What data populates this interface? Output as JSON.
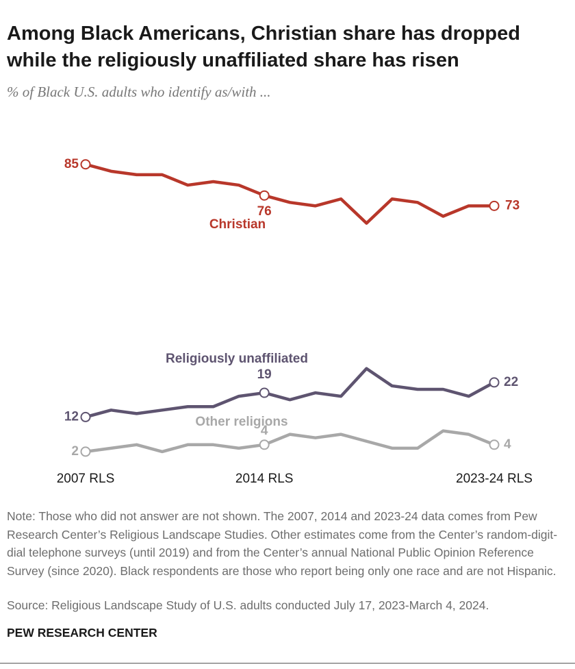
{
  "chart_data": {
    "type": "line",
    "title": "Among Black Americans, Christian share has dropped while the religiously unaffiliated share has risen",
    "subtitle": "% of Black U.S. adults who identify as/with ...",
    "categories": [
      "2007 RLS",
      null,
      null,
      null,
      null,
      null,
      null,
      "2014 RLS",
      null,
      null,
      null,
      null,
      null,
      null,
      null,
      null,
      "2023-24 RLS"
    ],
    "ylim": [
      0,
      90
    ],
    "series": [
      {
        "name": "Christian",
        "color": "#b8372a",
        "values": [
          85,
          83,
          82,
          82,
          79,
          80,
          79,
          76,
          74,
          73,
          75,
          68,
          75,
          74,
          70,
          73,
          73
        ]
      },
      {
        "name": "Religiously unaffiliated",
        "color": "#5e5470",
        "values": [
          12,
          14,
          13,
          14,
          15,
          15,
          18,
          19,
          17,
          19,
          18,
          26,
          21,
          20,
          20,
          18,
          22
        ]
      },
      {
        "name": "Other religions",
        "color": "#a8a8a8",
        "values": [
          2,
          3,
          4,
          2,
          4,
          4,
          3,
          4,
          7,
          6,
          7,
          5,
          3,
          3,
          8,
          7,
          4
        ]
      }
    ],
    "note": "Note: Those who did not answer are not shown. The 2007, 2014 and 2023-24 data comes from Pew Research Center’s Religious Landscape Studies. Other estimates come from the Center’s random-digit-dial telephone surveys (until 2019) and from the Center’s annual National Public Opinion Reference Survey (since 2020). Black respondents are those who report being only one race and are not Hispanic.",
    "source": "Source: Religious Landscape Study of U.S. adults conducted July 17, 2023-March 4, 2024.",
    "footer": "PEW RESEARCH CENTER"
  }
}
